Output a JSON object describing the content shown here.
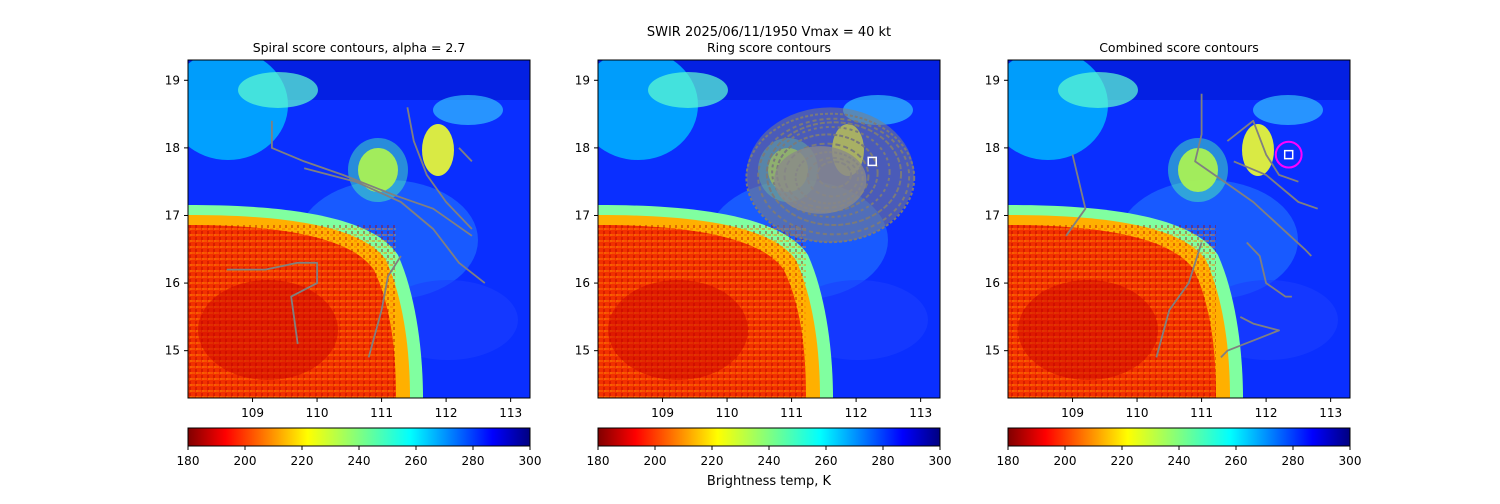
{
  "figure": {
    "suptitle_line1": "SWIR  2025/06/11/1950    Vmax = 40 kt",
    "colorbar_label": "Brightness temp, K",
    "colormap": "jet_r"
  },
  "chart_data": [
    {
      "type": "heatmap",
      "title": "Spiral score contours, alpha =  2.7",
      "xlim": [
        108.0,
        113.3
      ],
      "ylim": [
        14.3,
        19.3
      ],
      "xticks": [
        "109",
        "110",
        "111",
        "112",
        "113"
      ],
      "yticks": [
        "15",
        "16",
        "17",
        "18",
        "19"
      ],
      "colorbar": {
        "vmin": 180,
        "vmax": 300,
        "ticks": [
          "180",
          "200",
          "220",
          "240",
          "260",
          "280",
          "300"
        ]
      },
      "contours": [
        [
          [
            109.3,
            18.4
          ],
          [
            109.3,
            18.0
          ],
          [
            109.8,
            17.8
          ],
          [
            110.4,
            17.6
          ],
          [
            111.2,
            17.3
          ],
          [
            111.8,
            17.1
          ],
          [
            112.4,
            16.7
          ]
        ],
        [
          [
            109.8,
            17.7
          ],
          [
            110.6,
            17.5
          ],
          [
            111.3,
            17.2
          ],
          [
            111.8,
            16.8
          ],
          [
            112.2,
            16.3
          ],
          [
            112.6,
            16.0
          ]
        ],
        [
          [
            111.4,
            18.6
          ],
          [
            111.5,
            18.1
          ],
          [
            111.7,
            17.6
          ],
          [
            112.0,
            17.2
          ],
          [
            112.4,
            16.8
          ]
        ],
        [
          [
            108.6,
            16.2
          ],
          [
            109.2,
            16.2
          ],
          [
            109.7,
            16.3
          ],
          [
            110.0,
            16.3
          ],
          [
            110.0,
            16.0
          ],
          [
            109.6,
            15.8
          ],
          [
            109.7,
            15.1
          ]
        ],
        [
          [
            111.3,
            16.4
          ],
          [
            111.1,
            16.1
          ],
          [
            111.0,
            15.6
          ],
          [
            110.8,
            14.9
          ]
        ],
        [
          [
            112.2,
            18.0
          ],
          [
            112.4,
            17.8
          ]
        ]
      ]
    },
    {
      "type": "heatmap",
      "title": "Ring score contours",
      "xlim": [
        108.0,
        113.3
      ],
      "ylim": [
        14.3,
        19.3
      ],
      "xticks": [
        "109",
        "110",
        "111",
        "112",
        "113"
      ],
      "yticks": [
        "15",
        "16",
        "17",
        "18",
        "19"
      ],
      "colorbar": {
        "vmin": 180,
        "vmax": 300,
        "ticks": [
          "180",
          "200",
          "220",
          "240",
          "260",
          "280",
          "300"
        ]
      },
      "ring_region": {
        "center_lon": 111.6,
        "center_lat": 17.6,
        "lon_radius": 1.3,
        "lat_radius": 1.0
      },
      "marker": {
        "lon": 112.25,
        "lat": 17.8,
        "shape": "square"
      }
    },
    {
      "type": "heatmap",
      "title": "Combined score contours",
      "xlim": [
        108.0,
        113.3
      ],
      "ylim": [
        14.3,
        19.3
      ],
      "xticks": [
        "109",
        "110",
        "111",
        "112",
        "113"
      ],
      "yticks": [
        "15",
        "16",
        "17",
        "18",
        "19"
      ],
      "colorbar": {
        "vmin": 180,
        "vmax": 300,
        "ticks": [
          "180",
          "200",
          "220",
          "240",
          "260",
          "280",
          "300"
        ]
      },
      "contours": [
        [
          [
            109.0,
            17.9
          ],
          [
            109.1,
            17.5
          ],
          [
            109.2,
            17.1
          ],
          [
            108.9,
            16.7
          ]
        ],
        [
          [
            111.0,
            18.8
          ],
          [
            111.0,
            18.2
          ],
          [
            110.9,
            17.8
          ],
          [
            111.2,
            17.6
          ],
          [
            111.8,
            17.2
          ],
          [
            112.6,
            16.5
          ],
          [
            112.7,
            16.4
          ]
        ],
        [
          [
            111.5,
            17.8
          ],
          [
            112.0,
            17.6
          ],
          [
            112.5,
            17.2
          ],
          [
            112.8,
            17.1
          ]
        ],
        [
          [
            111.4,
            18.1
          ],
          [
            111.8,
            18.4
          ],
          [
            112.0,
            17.9
          ],
          [
            112.2,
            17.6
          ],
          [
            112.5,
            17.5
          ]
        ],
        [
          [
            111.7,
            16.6
          ],
          [
            111.9,
            16.4
          ],
          [
            112.0,
            16.0
          ],
          [
            112.3,
            15.8
          ],
          [
            112.4,
            15.8
          ]
        ],
        [
          [
            111.0,
            16.6
          ],
          [
            110.8,
            16.0
          ],
          [
            110.5,
            15.6
          ],
          [
            110.3,
            14.9
          ]
        ],
        [
          [
            111.6,
            15.5
          ],
          [
            111.8,
            15.4
          ],
          [
            112.2,
            15.3
          ],
          [
            111.4,
            15.0
          ],
          [
            111.3,
            14.9
          ]
        ]
      ],
      "marker": {
        "lon": 112.35,
        "lat": 17.9,
        "shape": "square"
      },
      "circle": {
        "lon": 112.35,
        "lat": 17.9,
        "radius_deg": 0.2,
        "color": "#ff00ff"
      }
    }
  ]
}
